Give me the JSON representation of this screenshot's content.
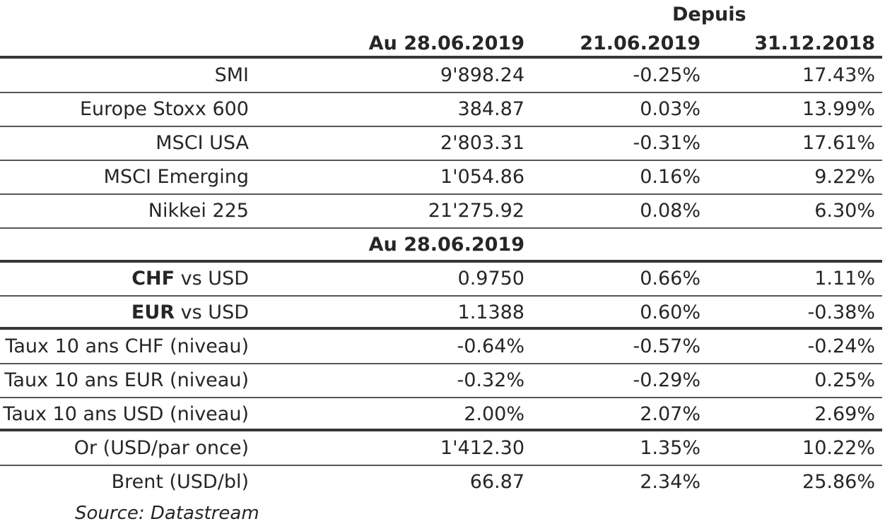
{
  "header": {
    "depuis": "Depuis",
    "col1": "Au 28.06.2019",
    "col2": "21.06.2019",
    "col3": "31.12.2018"
  },
  "rows": [
    {
      "label": "SMI",
      "v1": "9'898.24",
      "v2": "-0.25%",
      "v3": "17.43%"
    },
    {
      "label": "Europe Stoxx 600",
      "v1": "384.87",
      "v2": "0.03%",
      "v3": "13.99%"
    },
    {
      "label": "MSCI USA",
      "v1": "2'803.31",
      "v2": "-0.31%",
      "v3": "17.61%"
    },
    {
      "label": "MSCI Emerging",
      "v1": "1'054.86",
      "v2": "0.16%",
      "v3": "9.22%"
    },
    {
      "label": "Nikkei 225",
      "v1": "21'275.92",
      "v2": "0.08%",
      "v3": "6.30%"
    }
  ],
  "section_header": "Au 28.06.2019",
  "fx_rows": [
    {
      "label_bold": "CHF",
      "label_rest": " vs USD",
      "v1": "0.9750",
      "v2": "0.66%",
      "v3": "1.11%"
    },
    {
      "label_bold": "EUR",
      "label_rest": " vs USD",
      "v1": "1.1388",
      "v2": "0.60%",
      "v3": "-0.38%"
    }
  ],
  "rate_rows": [
    {
      "label": "Taux 10 ans CHF (niveau)",
      "v1": "-0.64%",
      "v2": "-0.57%",
      "v3": "-0.24%"
    },
    {
      "label": "Taux 10 ans EUR (niveau)",
      "v1": "-0.32%",
      "v2": "-0.29%",
      "v3": "0.25%"
    },
    {
      "label": "Taux 10 ans USD (niveau)",
      "v1": "2.00%",
      "v2": "2.07%",
      "v3": "2.69%"
    }
  ],
  "commodity_rows": [
    {
      "label": "Or (USD/par once)",
      "v1": "1'412.30",
      "v2": "1.35%",
      "v3": "10.22%"
    },
    {
      "label": "Brent (USD/bl)",
      "v1": "66.87",
      "v2": "2.34%",
      "v3": "25.86%"
    }
  ],
  "source": "Source: Datastream"
}
